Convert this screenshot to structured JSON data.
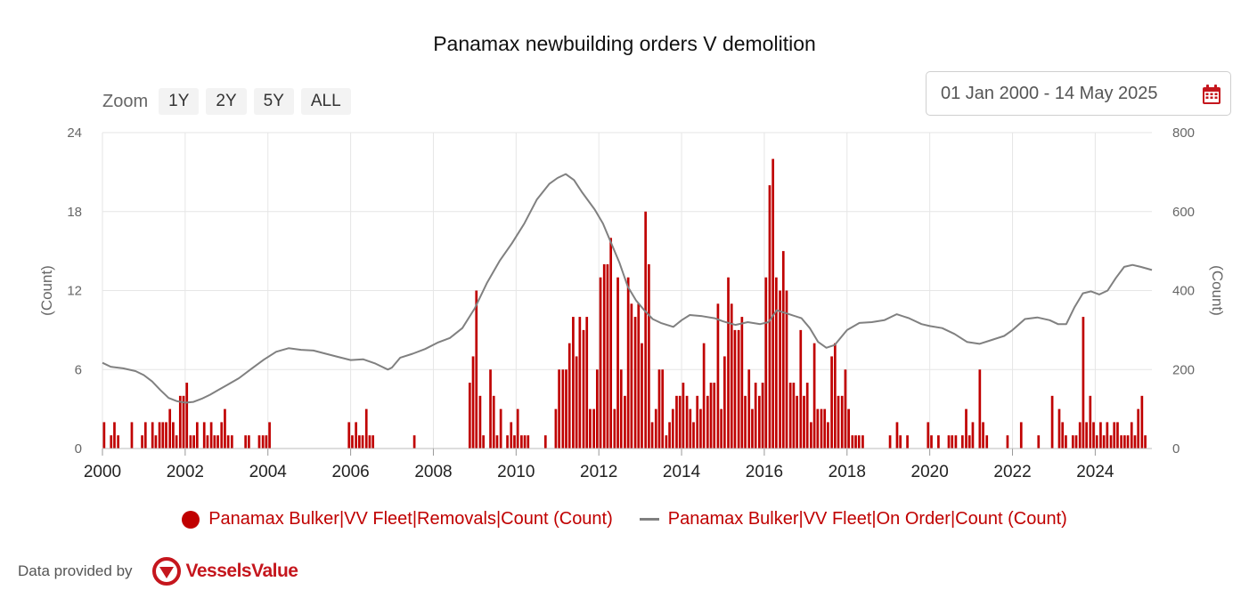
{
  "chart_title": "Panamax newbuilding orders V demolition",
  "zoom": {
    "label": "Zoom",
    "buttons": [
      "1Y",
      "2Y",
      "5Y",
      "ALL"
    ]
  },
  "date_range": {
    "value": "01 Jan 2000 - 14 May 2025",
    "icon": "calendar-icon"
  },
  "colors": {
    "removals": "#c00000",
    "on_order": "#808080",
    "legend_text": "#c00000",
    "grid": "#e6e6e6"
  },
  "credit": {
    "text": "Data provided by",
    "logo_text": "VesselsValue"
  },
  "chart_data": {
    "type": "bar+line",
    "title": "Panamax newbuilding orders V demolition",
    "x_range": [
      2000,
      2025.37
    ],
    "x_ticks": [
      "2000",
      "2002",
      "2004",
      "2006",
      "2008",
      "2010",
      "2012",
      "2014",
      "2016",
      "2018",
      "2020",
      "2022",
      "2024"
    ],
    "y_left": {
      "label": "(Count)",
      "range": [
        0,
        24
      ],
      "ticks": [
        "0",
        "6",
        "12",
        "18",
        "24"
      ]
    },
    "y_right": {
      "label": "(Count)",
      "range": [
        0,
        800
      ],
      "ticks": [
        "0",
        "200",
        "400",
        "600",
        "800"
      ]
    },
    "grid": true,
    "legend_position": "bottom",
    "series": [
      {
        "name": "Panamax Bulker|VV Fleet|Removals|Count (Count)",
        "type": "bar",
        "axis": "left",
        "points": [
          [
            2000.04,
            2
          ],
          [
            2000.21,
            1
          ],
          [
            2000.29,
            2
          ],
          [
            2000.38,
            1
          ],
          [
            2000.71,
            2
          ],
          [
            2000.96,
            1
          ],
          [
            2001.04,
            2
          ],
          [
            2001.21,
            2
          ],
          [
            2001.29,
            1
          ],
          [
            2001.38,
            2
          ],
          [
            2001.46,
            2
          ],
          [
            2001.54,
            2
          ],
          [
            2001.63,
            3
          ],
          [
            2001.71,
            2
          ],
          [
            2001.79,
            1
          ],
          [
            2001.88,
            4
          ],
          [
            2001.96,
            4
          ],
          [
            2002.04,
            5
          ],
          [
            2002.13,
            1
          ],
          [
            2002.21,
            1
          ],
          [
            2002.29,
            2
          ],
          [
            2002.46,
            2
          ],
          [
            2002.54,
            1
          ],
          [
            2002.63,
            2
          ],
          [
            2002.71,
            1
          ],
          [
            2002.79,
            1
          ],
          [
            2002.88,
            2
          ],
          [
            2002.96,
            3
          ],
          [
            2003.04,
            1
          ],
          [
            2003.13,
            1
          ],
          [
            2003.46,
            1
          ],
          [
            2003.54,
            1
          ],
          [
            2003.79,
            1
          ],
          [
            2003.88,
            1
          ],
          [
            2003.96,
            1
          ],
          [
            2004.04,
            2
          ],
          [
            2005.96,
            2
          ],
          [
            2006.04,
            1
          ],
          [
            2006.13,
            2
          ],
          [
            2006.21,
            1
          ],
          [
            2006.29,
            1
          ],
          [
            2006.38,
            3
          ],
          [
            2006.46,
            1
          ],
          [
            2006.54,
            1
          ],
          [
            2007.54,
            1
          ],
          [
            2008.88,
            5
          ],
          [
            2008.96,
            7
          ],
          [
            2009.04,
            12
          ],
          [
            2009.13,
            4
          ],
          [
            2009.21,
            1
          ],
          [
            2009.38,
            6
          ],
          [
            2009.46,
            4
          ],
          [
            2009.54,
            1
          ],
          [
            2009.63,
            3
          ],
          [
            2009.79,
            1
          ],
          [
            2009.88,
            2
          ],
          [
            2009.96,
            1
          ],
          [
            2010.04,
            3
          ],
          [
            2010.13,
            1
          ],
          [
            2010.21,
            1
          ],
          [
            2010.29,
            1
          ],
          [
            2010.71,
            1
          ],
          [
            2010.96,
            3
          ],
          [
            2011.04,
            6
          ],
          [
            2011.13,
            6
          ],
          [
            2011.21,
            6
          ],
          [
            2011.29,
            8
          ],
          [
            2011.38,
            10
          ],
          [
            2011.46,
            7
          ],
          [
            2011.54,
            10
          ],
          [
            2011.63,
            9
          ],
          [
            2011.71,
            10
          ],
          [
            2011.79,
            3
          ],
          [
            2011.88,
            3
          ],
          [
            2011.96,
            6
          ],
          [
            2012.04,
            13
          ],
          [
            2012.13,
            14
          ],
          [
            2012.21,
            14
          ],
          [
            2012.29,
            16
          ],
          [
            2012.38,
            3
          ],
          [
            2012.46,
            13
          ],
          [
            2012.54,
            6
          ],
          [
            2012.63,
            4
          ],
          [
            2012.71,
            13
          ],
          [
            2012.79,
            11
          ],
          [
            2012.88,
            10
          ],
          [
            2012.96,
            11
          ],
          [
            2013.04,
            8
          ],
          [
            2013.13,
            18
          ],
          [
            2013.21,
            14
          ],
          [
            2013.29,
            2
          ],
          [
            2013.38,
            3
          ],
          [
            2013.46,
            6
          ],
          [
            2013.54,
            6
          ],
          [
            2013.63,
            1
          ],
          [
            2013.71,
            2
          ],
          [
            2013.79,
            3
          ],
          [
            2013.88,
            4
          ],
          [
            2013.96,
            4
          ],
          [
            2014.04,
            5
          ],
          [
            2014.13,
            4
          ],
          [
            2014.21,
            3
          ],
          [
            2014.29,
            2
          ],
          [
            2014.38,
            4
          ],
          [
            2014.46,
            3
          ],
          [
            2014.54,
            8
          ],
          [
            2014.63,
            4
          ],
          [
            2014.71,
            5
          ],
          [
            2014.79,
            5
          ],
          [
            2014.88,
            11
          ],
          [
            2014.96,
            3
          ],
          [
            2015.04,
            7
          ],
          [
            2015.13,
            13
          ],
          [
            2015.21,
            11
          ],
          [
            2015.29,
            9
          ],
          [
            2015.38,
            9
          ],
          [
            2015.46,
            10
          ],
          [
            2015.54,
            4
          ],
          [
            2015.63,
            6
          ],
          [
            2015.71,
            3
          ],
          [
            2015.79,
            5
          ],
          [
            2015.88,
            4
          ],
          [
            2015.96,
            5
          ],
          [
            2016.04,
            13
          ],
          [
            2016.13,
            20
          ],
          [
            2016.21,
            22
          ],
          [
            2016.29,
            13
          ],
          [
            2016.38,
            12
          ],
          [
            2016.46,
            15
          ],
          [
            2016.54,
            12
          ],
          [
            2016.63,
            5
          ],
          [
            2016.71,
            5
          ],
          [
            2016.79,
            4
          ],
          [
            2016.88,
            9
          ],
          [
            2016.96,
            4
          ],
          [
            2017.04,
            5
          ],
          [
            2017.13,
            2
          ],
          [
            2017.21,
            8
          ],
          [
            2017.29,
            3
          ],
          [
            2017.38,
            3
          ],
          [
            2017.46,
            3
          ],
          [
            2017.54,
            2
          ],
          [
            2017.63,
            7
          ],
          [
            2017.71,
            8
          ],
          [
            2017.79,
            4
          ],
          [
            2017.88,
            4
          ],
          [
            2017.96,
            6
          ],
          [
            2018.04,
            3
          ],
          [
            2018.13,
            1
          ],
          [
            2018.21,
            1
          ],
          [
            2018.29,
            1
          ],
          [
            2018.38,
            1
          ],
          [
            2019.04,
            1
          ],
          [
            2019.21,
            2
          ],
          [
            2019.29,
            1
          ],
          [
            2019.46,
            1
          ],
          [
            2019.96,
            2
          ],
          [
            2020.04,
            1
          ],
          [
            2020.21,
            1
          ],
          [
            2020.46,
            1
          ],
          [
            2020.54,
            1
          ],
          [
            2020.63,
            1
          ],
          [
            2020.79,
            1
          ],
          [
            2020.88,
            3
          ],
          [
            2020.96,
            1
          ],
          [
            2021.04,
            2
          ],
          [
            2021.21,
            6
          ],
          [
            2021.29,
            2
          ],
          [
            2021.38,
            1
          ],
          [
            2021.88,
            1
          ],
          [
            2022.21,
            2
          ],
          [
            2022.63,
            1
          ],
          [
            2022.96,
            4
          ],
          [
            2023.13,
            3
          ],
          [
            2023.21,
            2
          ],
          [
            2023.29,
            1
          ],
          [
            2023.46,
            1
          ],
          [
            2023.54,
            1
          ],
          [
            2023.63,
            2
          ],
          [
            2023.71,
            10
          ],
          [
            2023.79,
            2
          ],
          [
            2023.88,
            4
          ],
          [
            2023.96,
            2
          ],
          [
            2024.04,
            1
          ],
          [
            2024.13,
            2
          ],
          [
            2024.21,
            1
          ],
          [
            2024.29,
            2
          ],
          [
            2024.38,
            1
          ],
          [
            2024.46,
            2
          ],
          [
            2024.54,
            2
          ],
          [
            2024.63,
            1
          ],
          [
            2024.71,
            1
          ],
          [
            2024.79,
            1
          ],
          [
            2024.88,
            2
          ],
          [
            2024.96,
            1
          ],
          [
            2025.04,
            3
          ],
          [
            2025.13,
            4
          ],
          [
            2025.21,
            1
          ]
        ]
      },
      {
        "name": "Panamax Bulker|VV Fleet|On Order|Count (Count)",
        "type": "line",
        "axis": "right",
        "points": [
          [
            2000.0,
            217
          ],
          [
            2000.2,
            207
          ],
          [
            2000.5,
            203
          ],
          [
            2000.8,
            196
          ],
          [
            2001.0,
            186
          ],
          [
            2001.2,
            170
          ],
          [
            2001.4,
            148
          ],
          [
            2001.6,
            128
          ],
          [
            2001.8,
            120
          ],
          [
            2002.0,
            116
          ],
          [
            2002.2,
            118
          ],
          [
            2002.4,
            126
          ],
          [
            2002.6,
            136
          ],
          [
            2002.8,
            148
          ],
          [
            2003.0,
            160
          ],
          [
            2003.3,
            178
          ],
          [
            2003.6,
            202
          ],
          [
            2003.9,
            225
          ],
          [
            2004.2,
            245
          ],
          [
            2004.5,
            254
          ],
          [
            2004.8,
            250
          ],
          [
            2005.1,
            248
          ],
          [
            2005.4,
            240
          ],
          [
            2005.7,
            232
          ],
          [
            2006.0,
            224
          ],
          [
            2006.3,
            226
          ],
          [
            2006.6,
            215
          ],
          [
            2006.9,
            200
          ],
          [
            2007.0,
            205
          ],
          [
            2007.2,
            230
          ],
          [
            2007.5,
            240
          ],
          [
            2007.8,
            252
          ],
          [
            2008.1,
            268
          ],
          [
            2008.4,
            280
          ],
          [
            2008.7,
            305
          ],
          [
            2009.0,
            355
          ],
          [
            2009.3,
            420
          ],
          [
            2009.6,
            475
          ],
          [
            2009.9,
            520
          ],
          [
            2010.2,
            570
          ],
          [
            2010.5,
            630
          ],
          [
            2010.8,
            670
          ],
          [
            2011.0,
            685
          ],
          [
            2011.2,
            695
          ],
          [
            2011.4,
            680
          ],
          [
            2011.6,
            648
          ],
          [
            2011.9,
            605
          ],
          [
            2012.1,
            570
          ],
          [
            2012.3,
            520
          ],
          [
            2012.5,
            470
          ],
          [
            2012.7,
            410
          ],
          [
            2012.9,
            375
          ],
          [
            2013.1,
            350
          ],
          [
            2013.3,
            328
          ],
          [
            2013.5,
            318
          ],
          [
            2013.8,
            308
          ],
          [
            2014.0,
            325
          ],
          [
            2014.2,
            338
          ],
          [
            2014.5,
            335
          ],
          [
            2014.8,
            330
          ],
          [
            2015.0,
            322
          ],
          [
            2015.3,
            313
          ],
          [
            2015.6,
            320
          ],
          [
            2015.9,
            315
          ],
          [
            2016.1,
            320
          ],
          [
            2016.3,
            350
          ],
          [
            2016.6,
            340
          ],
          [
            2016.9,
            330
          ],
          [
            2017.1,
            305
          ],
          [
            2017.3,
            270
          ],
          [
            2017.5,
            255
          ],
          [
            2017.7,
            262
          ],
          [
            2018.0,
            300
          ],
          [
            2018.3,
            318
          ],
          [
            2018.6,
            320
          ],
          [
            2018.9,
            325
          ],
          [
            2019.2,
            340
          ],
          [
            2019.5,
            330
          ],
          [
            2019.8,
            315
          ],
          [
            2020.0,
            310
          ],
          [
            2020.3,
            305
          ],
          [
            2020.6,
            290
          ],
          [
            2020.9,
            270
          ],
          [
            2021.2,
            265
          ],
          [
            2021.5,
            275
          ],
          [
            2021.8,
            285
          ],
          [
            2022.0,
            300
          ],
          [
            2022.3,
            328
          ],
          [
            2022.6,
            332
          ],
          [
            2022.9,
            325
          ],
          [
            2023.1,
            315
          ],
          [
            2023.3,
            315
          ],
          [
            2023.5,
            358
          ],
          [
            2023.7,
            393
          ],
          [
            2023.9,
            398
          ],
          [
            2024.1,
            390
          ],
          [
            2024.3,
            400
          ],
          [
            2024.5,
            432
          ],
          [
            2024.7,
            460
          ],
          [
            2024.9,
            465
          ],
          [
            2025.1,
            460
          ],
          [
            2025.37,
            452
          ]
        ]
      }
    ]
  }
}
